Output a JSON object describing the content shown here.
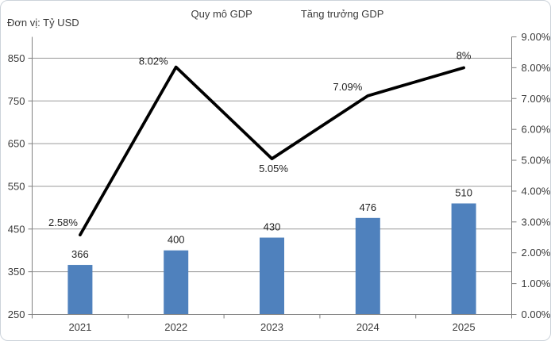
{
  "unit_label": "Đơn vị: Tỷ USD",
  "legend": {
    "bar_label": "Quy mô GDP",
    "line_label": "Tăng trưởng GDP"
  },
  "colors": {
    "bar": "#4f81bd",
    "line": "#000000",
    "grid": "#9b9b9b",
    "axis": "#7f7f7f",
    "axis_text": "#3a3a3a",
    "label_text": "#1f1f1f",
    "border": "#ccd3da"
  },
  "chart_data": {
    "type": "bar+line combo",
    "title": "",
    "categories": [
      "2021",
      "2022",
      "2023",
      "2024",
      "2025"
    ],
    "series": [
      {
        "name": "Quy mô GDP",
        "type": "bar",
        "axis": "left",
        "unit": "Tỷ USD",
        "values": [
          366,
          400,
          430,
          476,
          510
        ],
        "data_labels": [
          "366",
          "400",
          "430",
          "476",
          "510"
        ]
      },
      {
        "name": "Tăng trưởng GDP",
        "type": "line",
        "axis": "right",
        "unit": "%",
        "values": [
          2.58,
          8.02,
          5.05,
          7.09,
          8
        ],
        "data_labels": [
          "2.58%",
          "8.02%",
          "5.05%",
          "7.09%",
          "8%"
        ]
      }
    ],
    "left_axis": {
      "title": "Đơn vị: Tỷ USD",
      "min": 250,
      "max": 900,
      "major_unit": 100,
      "tick_labels": [
        "250",
        "350",
        "450",
        "550",
        "650",
        "750",
        "850"
      ]
    },
    "right_axis": {
      "min": 0,
      "max": 9,
      "major_unit": 1,
      "tick_labels": [
        "0.00%",
        "1.00%",
        "2.00%",
        "3.00%",
        "4.00%",
        "5.00%",
        "6.00%",
        "7.00%",
        "8.00%",
        "9.00%"
      ]
    },
    "grid": true,
    "legend_position": "top-center"
  }
}
